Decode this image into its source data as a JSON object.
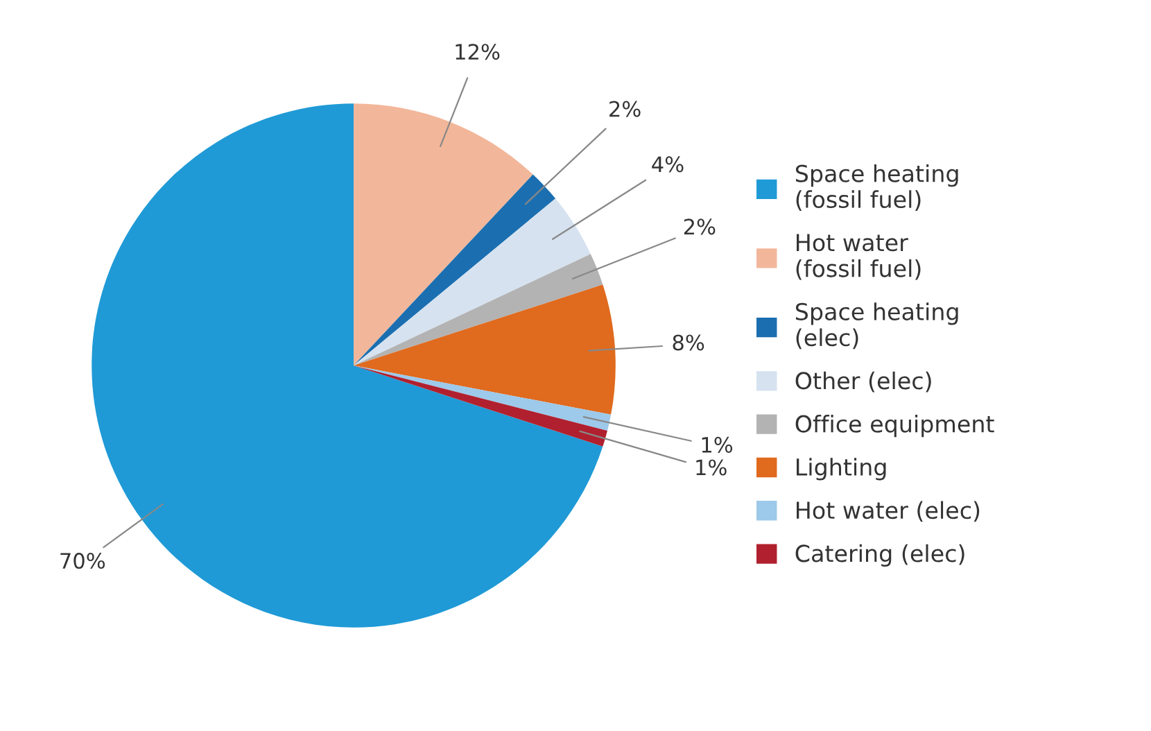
{
  "chart_data": {
    "type": "pie",
    "categories": [
      "Space heating\n(fossil fuel)",
      "Hot water\n(fossil fuel)",
      "Space heating\n(elec)",
      "Other (elec)",
      "Office equipment",
      "Lighting",
      "Hot water (elec)",
      "Catering (elec)"
    ],
    "values": [
      70,
      12,
      2,
      4,
      2,
      8,
      1,
      1
    ],
    "value_labels": [
      "70%",
      "12%",
      "2%",
      "4%",
      "2%",
      "8%",
      "1%",
      "1%"
    ],
    "colors": [
      "#1f9ad6",
      "#f2b79a",
      "#1b6fb0",
      "#d6e2f0",
      "#b3b3b3",
      "#e06a1e",
      "#9dc9ea",
      "#b0202e"
    ],
    "legend": "right"
  }
}
